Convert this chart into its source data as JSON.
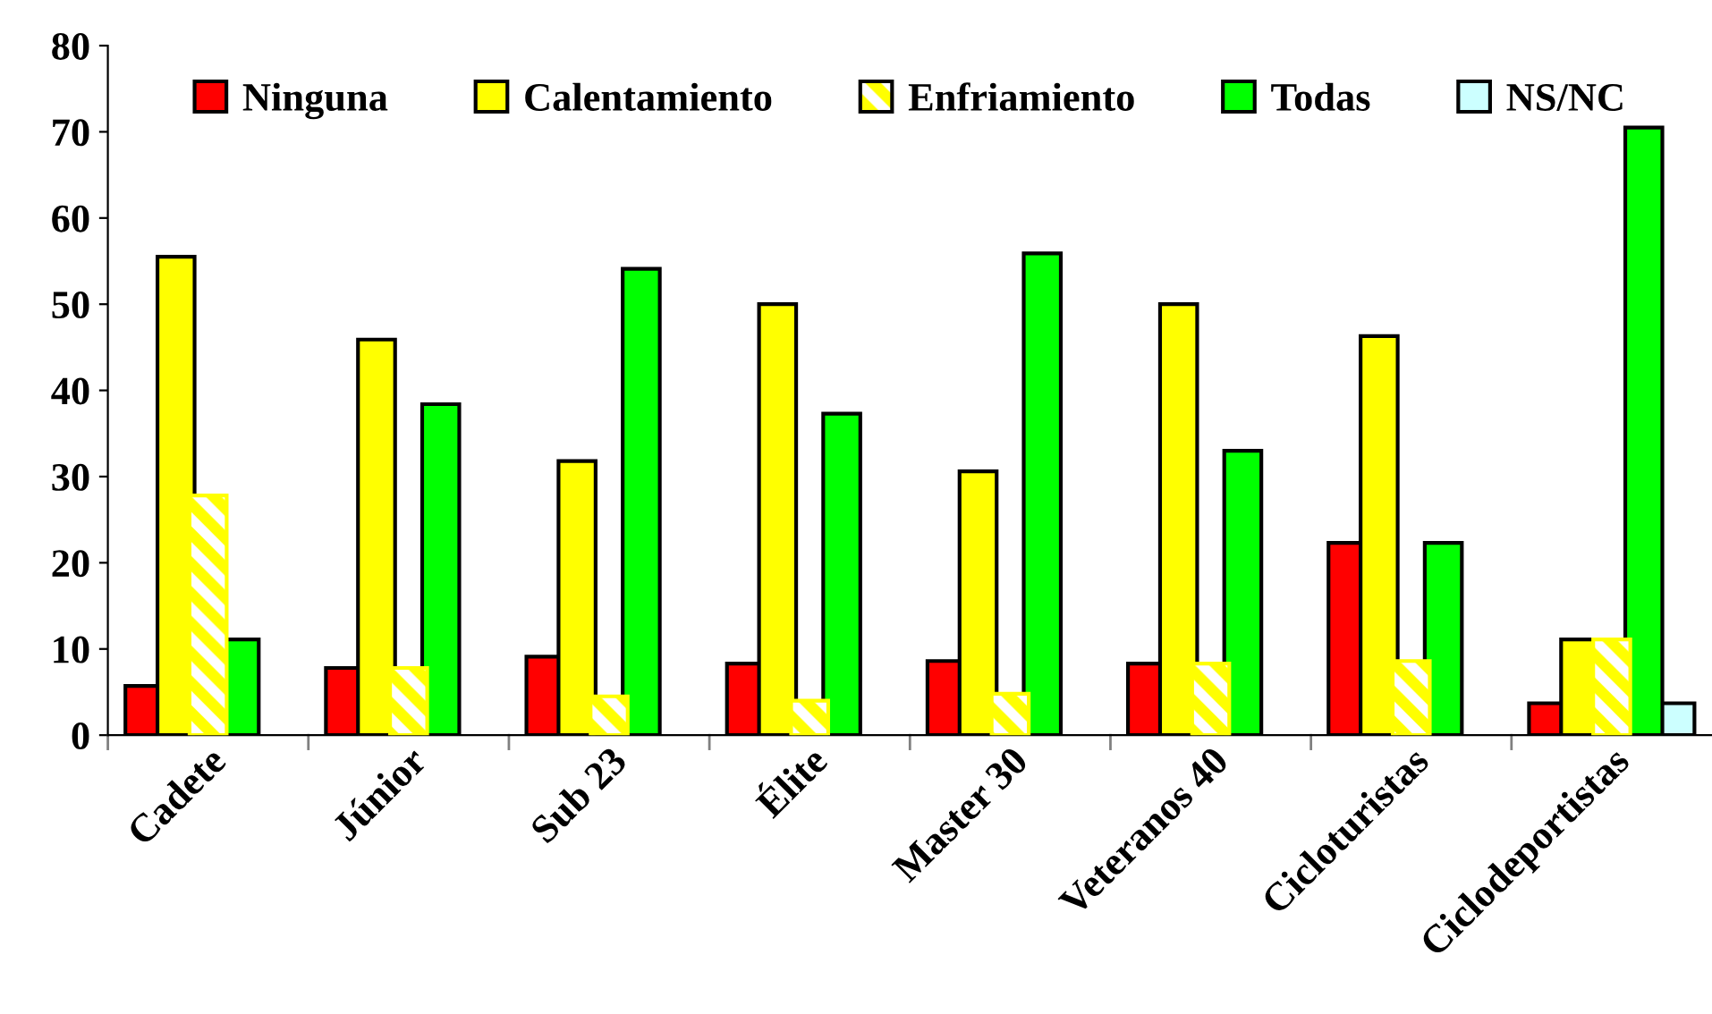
{
  "chart_data": {
    "type": "bar",
    "categories": [
      "Cadete",
      "Júnior",
      "Sub 23",
      "Élite",
      "Master 30",
      "Veteranos 40",
      "Cicloturistas",
      "Ciclodeportistas"
    ],
    "series": [
      {
        "name": "Ninguna",
        "color": "#ff0000",
        "values": [
          5.7,
          7.8,
          9.1,
          8.3,
          8.6,
          8.3,
          22.3,
          3.7
        ]
      },
      {
        "name": "Calentamiento",
        "color": "#ffff00",
        "values": [
          55.5,
          45.9,
          31.8,
          50.0,
          30.6,
          50.0,
          46.3,
          11.1
        ]
      },
      {
        "name": "Enfriamiento",
        "color": "#ffff00",
        "values": [
          27.8,
          7.8,
          4.5,
          4.0,
          4.8,
          8.3,
          8.6,
          11.1
        ]
      },
      {
        "name": "Todas",
        "color": "#00ff00",
        "values": [
          11.1,
          38.4,
          54.1,
          37.3,
          55.9,
          33.0,
          22.3,
          70.5
        ]
      },
      {
        "name": "NS/NC",
        "color": "#ccffff",
        "values": [
          null,
          null,
          null,
          null,
          null,
          null,
          null,
          3.7
        ]
      }
    ],
    "ylim": [
      0,
      80
    ],
    "yticks": [
      0,
      10,
      20,
      30,
      40,
      50,
      60,
      70,
      80
    ],
    "grid": false,
    "legend": "top"
  }
}
